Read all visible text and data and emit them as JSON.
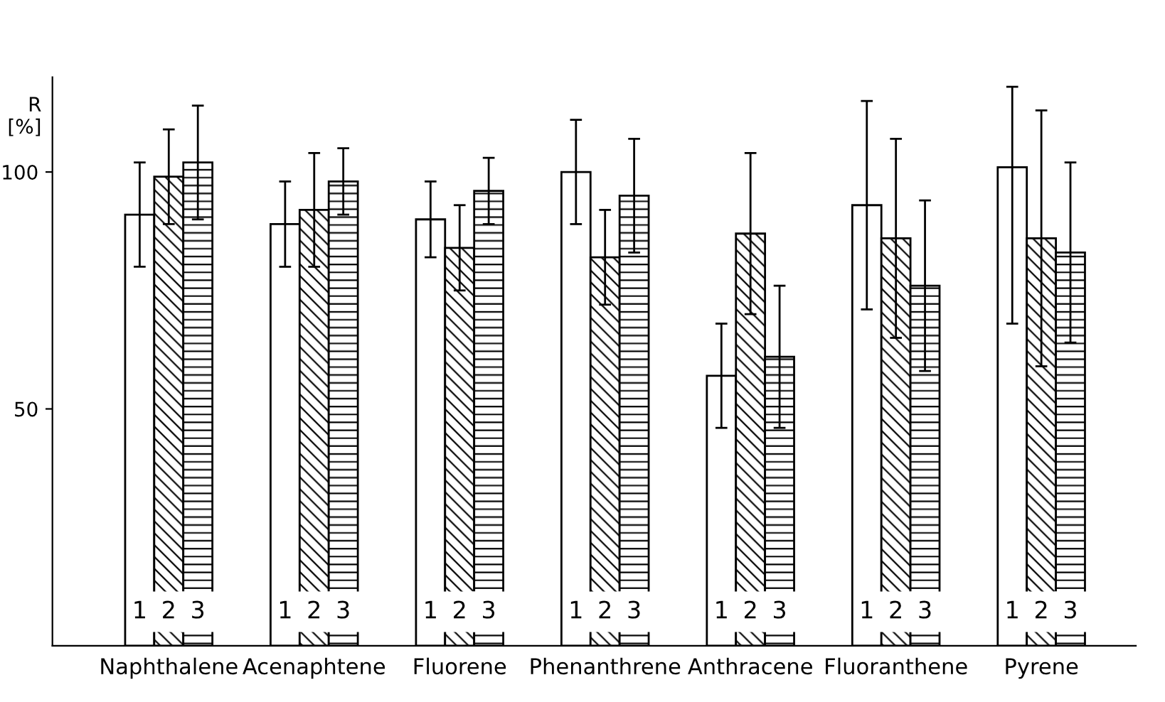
{
  "chart_data": {
    "type": "bar",
    "ylabel": "R\n[%]",
    "categories": [
      "Naphthalene",
      "Acenaphtene",
      "Fluorene",
      "Phenanthrene",
      "Anthracene",
      "Fluoranthene",
      "Pyrene"
    ],
    "series": [
      {
        "name": "1",
        "color": "#ffffff",
        "values": [
          91,
          89,
          90,
          100,
          57,
          93,
          101
        ],
        "errors": [
          11,
          9,
          8,
          11,
          11,
          22,
          [
            68,
            118
          ]
        ]
      },
      {
        "name": "2",
        "color": "#000000",
        "values": [
          99,
          92,
          84,
          82,
          87,
          86,
          86
        ],
        "errors": [
          10,
          12,
          9,
          10,
          17,
          21,
          27
        ]
      },
      {
        "name": "3",
        "color": "#000000",
        "values": [
          102,
          98,
          96,
          95,
          61,
          76,
          83
        ],
        "errors": [
          12,
          7,
          7,
          12,
          15,
          18,
          19
        ]
      }
    ],
    "ylim": [
      0,
      120
    ],
    "yticks": [
      50,
      100
    ],
    "grid": false,
    "legend": false
  }
}
